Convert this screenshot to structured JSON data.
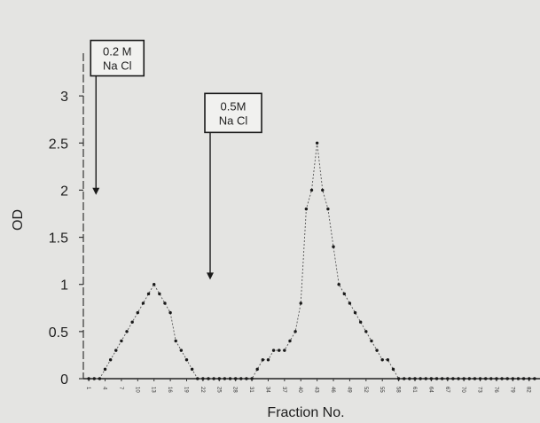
{
  "chart_data": {
    "type": "line",
    "xlabel": "Fraction No.",
    "ylabel": "OD",
    "ylim": [
      0,
      3.5
    ],
    "xlim": [
      0,
      84
    ],
    "yticks": [
      0,
      0.5,
      1,
      1.5,
      2,
      2.5,
      3
    ],
    "ytick_labels": [
      "0",
      "0.5",
      "1",
      "1.5",
      "2",
      "2.5",
      "3"
    ],
    "xticks": [
      1,
      4,
      7,
      10,
      13,
      16,
      19,
      22,
      25,
      28,
      31,
      34,
      37,
      40,
      43,
      46,
      49,
      52,
      55,
      58,
      61,
      64,
      67,
      70,
      73,
      76,
      79,
      82
    ],
    "xtick_labels": [
      "1",
      "4",
      "7",
      "10",
      "13",
      "16",
      "19",
      "22",
      "25",
      "28",
      "31",
      "34",
      "37",
      "40",
      "43",
      "46",
      "49",
      "52",
      "55",
      "58",
      "61",
      "64",
      "67",
      "70",
      "73",
      "76",
      "79",
      "82"
    ],
    "grid": false,
    "series": [
      {
        "x": [
          1,
          2,
          3,
          4,
          5,
          6,
          7,
          8,
          9,
          10,
          11,
          12,
          13,
          14,
          15,
          16,
          17,
          18,
          19,
          20,
          21,
          22,
          23,
          24,
          25,
          26,
          27,
          28,
          29,
          30,
          31,
          32,
          33,
          34,
          35,
          36,
          37,
          38,
          39,
          40,
          41,
          42,
          43,
          44,
          45,
          46,
          47,
          48,
          49,
          50,
          51,
          52,
          53,
          54,
          55,
          56,
          57,
          58,
          59,
          60,
          61,
          62,
          63,
          64,
          65,
          66,
          67,
          68,
          69,
          70,
          71,
          72,
          73,
          74,
          75,
          76,
          77,
          78,
          79,
          80,
          81,
          82,
          83
        ],
        "y": [
          0,
          0,
          0,
          0.1,
          0.2,
          0.3,
          0.4,
          0.5,
          0.6,
          0.7,
          0.8,
          0.9,
          1.0,
          0.9,
          0.8,
          0.7,
          0.4,
          0.3,
          0.2,
          0.1,
          0,
          0,
          0,
          0,
          0,
          0,
          0,
          0,
          0,
          0,
          0,
          0.1,
          0.2,
          0.2,
          0.3,
          0.3,
          0.3,
          0.4,
          0.5,
          0.8,
          1.8,
          2.0,
          2.5,
          2.0,
          1.8,
          1.4,
          1.0,
          0.9,
          0.8,
          0.7,
          0.6,
          0.5,
          0.4,
          0.3,
          0.2,
          0.2,
          0.1,
          0,
          0,
          0,
          0,
          0,
          0,
          0,
          0,
          0,
          0,
          0,
          0,
          0,
          0,
          0,
          0,
          0,
          0,
          0,
          0,
          0,
          0,
          0,
          0,
          0,
          0
        ]
      }
    ],
    "annotations": [
      {
        "line1": "0.2 M",
        "line2": "Na Cl",
        "x": 2,
        "y_start": 3.25,
        "y_end": 1.95
      },
      {
        "line1": "0.5M",
        "line2": "Na Cl",
        "x": 23,
        "y_start": 2.65,
        "y_end": 1.05
      }
    ]
  }
}
